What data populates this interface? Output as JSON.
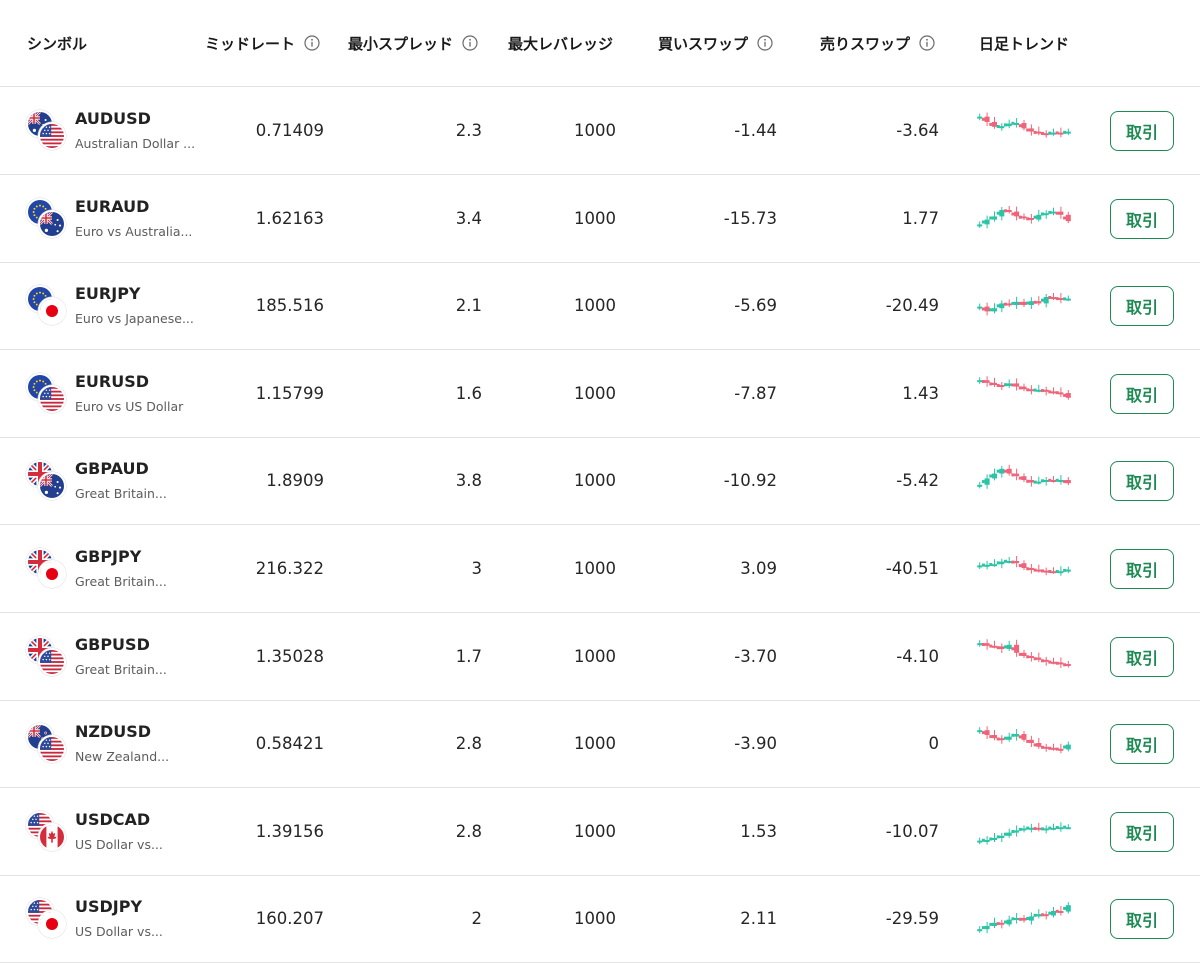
{
  "headers": {
    "symbol": "シンボル",
    "mid_rate": "ミッドレート",
    "min_spread": "最小スプレッド",
    "max_leverage": "最大レバレッジ",
    "buy_swap": "買いスワップ",
    "sell_swap": "売りスワップ",
    "daily_trend": "日足トレンド"
  },
  "trade_label": "取引",
  "colors": {
    "up": "#2bc4a6",
    "down": "#f0647a",
    "accent": "#1f8a54"
  },
  "rows": [
    {
      "code": "AUDUSD",
      "desc": "Australian Dollar ...",
      "base": "AU",
      "quote": "US",
      "mid": "0.71409",
      "spread": "2.3",
      "leverage": "1000",
      "buy": "-1.44",
      "sell": "-3.64",
      "trend": [
        0.92,
        0.75,
        0.6,
        0.62,
        0.7,
        0.72,
        0.55,
        0.45,
        0.4,
        0.38,
        0.42,
        0.4,
        0.45
      ]
    },
    {
      "code": "EURAUD",
      "desc": "Euro vs Australia...",
      "base": "EU",
      "quote": "AU",
      "mid": "1.62163",
      "spread": "3.4",
      "leverage": "1000",
      "buy": "-15.73",
      "sell": "1.77",
      "trend": [
        0.3,
        0.45,
        0.55,
        0.75,
        0.7,
        0.55,
        0.5,
        0.45,
        0.6,
        0.65,
        0.7,
        0.6,
        0.4
      ]
    },
    {
      "code": "EURJPY",
      "desc": "Euro vs Japanese...",
      "base": "EU",
      "quote": "JP",
      "mid": "185.516",
      "spread": "2.1",
      "leverage": "1000",
      "buy": "-5.69",
      "sell": "-20.49",
      "trend": [
        0.45,
        0.3,
        0.4,
        0.55,
        0.5,
        0.6,
        0.5,
        0.62,
        0.55,
        0.75,
        0.72,
        0.68,
        0.7
      ]
    },
    {
      "code": "EURUSD",
      "desc": "Euro vs US Dollar",
      "base": "EU",
      "quote": "US",
      "mid": "1.15799",
      "spread": "1.6",
      "leverage": "1000",
      "buy": "-7.87",
      "sell": "1.43",
      "trend": [
        0.9,
        0.82,
        0.75,
        0.72,
        0.8,
        0.7,
        0.62,
        0.58,
        0.6,
        0.55,
        0.52,
        0.5,
        0.35
      ]
    },
    {
      "code": "GBPAUD",
      "desc": "Great Britain...",
      "base": "GB",
      "quote": "AU",
      "mid": "1.8909",
      "spread": "3.8",
      "leverage": "1000",
      "buy": "-10.92",
      "sell": "-5.42",
      "trend": [
        0.35,
        0.55,
        0.7,
        0.85,
        0.7,
        0.62,
        0.5,
        0.42,
        0.45,
        0.5,
        0.48,
        0.5,
        0.4
      ]
    },
    {
      "code": "GBPJPY",
      "desc": "Great Britain...",
      "base": "GB",
      "quote": "JP",
      "mid": "216.322",
      "spread": "3",
      "leverage": "1000",
      "buy": "3.09",
      "sell": "-40.51",
      "trend": [
        0.58,
        0.6,
        0.62,
        0.7,
        0.72,
        0.65,
        0.5,
        0.45,
        0.42,
        0.4,
        0.38,
        0.4,
        0.45
      ]
    },
    {
      "code": "GBPUSD",
      "desc": "Great Britain...",
      "base": "GB",
      "quote": "US",
      "mid": "1.35028",
      "spread": "1.7",
      "leverage": "1000",
      "buy": "-3.70",
      "sell": "-4.10",
      "trend": [
        0.9,
        0.82,
        0.8,
        0.72,
        0.85,
        0.6,
        0.5,
        0.45,
        0.38,
        0.32,
        0.3,
        0.25,
        0.2
      ]
    },
    {
      "code": "NZDUSD",
      "desc": "New Zealand...",
      "base": "NZ",
      "quote": "US",
      "mid": "0.58421",
      "spread": "2.8",
      "leverage": "1000",
      "buy": "-3.90",
      "sell": "0",
      "trend": [
        0.9,
        0.75,
        0.65,
        0.6,
        0.7,
        0.78,
        0.6,
        0.5,
        0.38,
        0.35,
        0.32,
        0.3,
        0.45
      ]
    },
    {
      "code": "USDCAD",
      "desc": "US Dollar vs...",
      "base": "US",
      "quote": "CA",
      "mid": "1.39156",
      "spread": "2.8",
      "leverage": "1000",
      "buy": "1.53",
      "sell": "-10.07",
      "trend": [
        0.2,
        0.22,
        0.28,
        0.35,
        0.45,
        0.52,
        0.58,
        0.6,
        0.55,
        0.58,
        0.6,
        0.62,
        0.62
      ]
    },
    {
      "code": "USDJPY",
      "desc": "US Dollar vs...",
      "base": "US",
      "quote": "JP",
      "mid": "160.207",
      "spread": "2",
      "leverage": "1000",
      "buy": "2.11",
      "sell": "-29.59",
      "trend": [
        0.15,
        0.25,
        0.35,
        0.3,
        0.45,
        0.5,
        0.42,
        0.55,
        0.62,
        0.58,
        0.72,
        0.7,
        0.9
      ]
    }
  ]
}
